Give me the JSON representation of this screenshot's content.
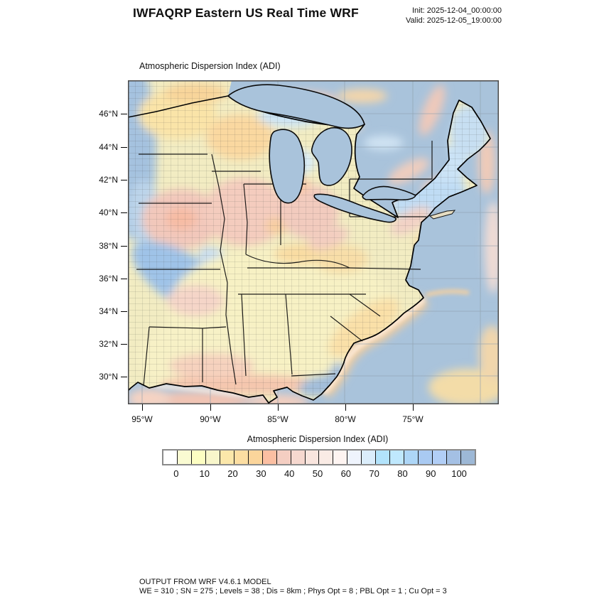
{
  "header": {
    "title": "IWFAQRP Eastern US Real Time WRF",
    "init_label": "Init: 2025-12-04_00:00:00",
    "valid_label": "Valid: 2025-12-05_19:00:00"
  },
  "map": {
    "subtitle": "Atmospheric Dispersion Index   (ADI)",
    "lat_labels": [
      "46°N",
      "44°N",
      "42°N",
      "40°N",
      "38°N",
      "36°N",
      "34°N",
      "32°N",
      "30°N"
    ],
    "lon_labels": [
      "95°W",
      "90°W",
      "85°W",
      "80°W",
      "75°W"
    ],
    "water_color": "#A9C3DB",
    "land_base_color": "#F2ECC2"
  },
  "colorbar": {
    "title": "Atmospheric Dispersion Index  (ADI)",
    "tick_labels": [
      "0",
      "10",
      "20",
      "30",
      "40",
      "50",
      "60",
      "70",
      "80",
      "90",
      "100"
    ],
    "cell_colors": [
      "#FFFFFF",
      "#FAFBD2",
      "#FDFEC2",
      "#F8F6CB",
      "#FBE7AA",
      "#FCDEA2",
      "#FBD59B",
      "#FBBFA2",
      "#F4CEC2",
      "#F6D8CF",
      "#F9E5DE",
      "#FAEBE5",
      "#FEF4F1",
      "#EFF4FD",
      "#DBEDFB",
      "#B2E3FB",
      "#BFE8FD",
      "#ADD6F7",
      "#A9CAF2",
      "#B1CEF6",
      "#A4C0E4",
      "#9DB8D6"
    ]
  },
  "footer": {
    "line1": "OUTPUT FROM WRF V4.6.1 MODEL",
    "line2": "WE = 310 ; SN = 275 ; Levels = 38 ; Dis = 8km ; Phys Opt = 8 ; PBL Opt = 1 ; Cu Opt = 3"
  }
}
